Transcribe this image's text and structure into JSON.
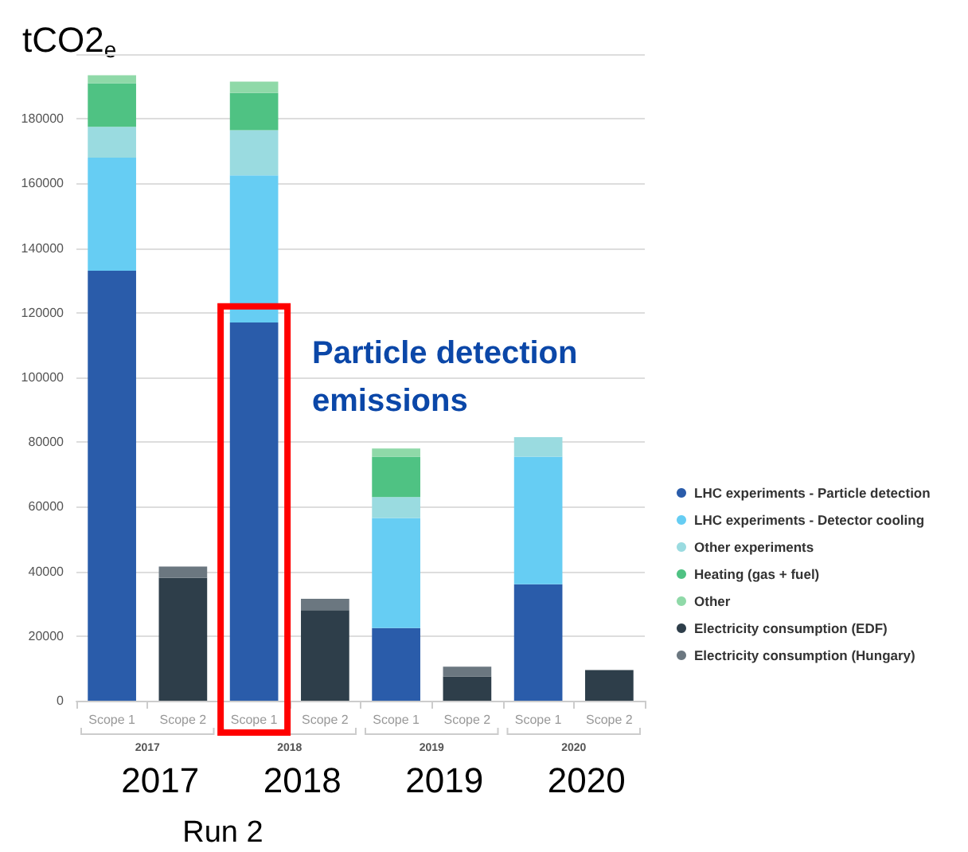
{
  "chart_data": {
    "type": "bar",
    "stacked": true,
    "ylabel": "tCO2$_{e}$",
    "categories": [
      "Scope 1",
      "Scope 2",
      "Scope 1",
      "Scope 2",
      "Scope 1",
      "Scope 2",
      "Scope 1",
      "Scope 2"
    ],
    "series": [
      {
        "name": "LHC experiments - Particle detection",
        "color": "#2a5caa",
        "values": [
          133000,
          null,
          117000,
          null,
          22500,
          null,
          36000,
          null
        ]
      },
      {
        "name": "LHC experiments - Detector cooling",
        "color": "#66cdf3",
        "values": [
          35000,
          null,
          45500,
          null,
          34000,
          null,
          39500,
          null
        ]
      },
      {
        "name": "Other experiments",
        "color": "#9adbe0",
        "values": [
          9500,
          null,
          14000,
          null,
          6500,
          null,
          6000,
          null
        ]
      },
      {
        "name": "Heating (gas + fuel)",
        "color": "#4fc283",
        "values": [
          13500,
          null,
          11500,
          null,
          12500,
          null,
          null,
          null
        ]
      },
      {
        "name": "Other",
        "color": "#8fd9a8",
        "values": [
          2500,
          null,
          3500,
          null,
          2500,
          null,
          null,
          null
        ]
      },
      {
        "name": "Electricity consumption (EDF)",
        "color": "#2e3e4a",
        "values": [
          null,
          38000,
          null,
          28000,
          null,
          7500,
          null,
          9500
        ]
      },
      {
        "name": "Electricity consumption (Hungary)",
        "color": "#6b7780",
        "values": [
          null,
          3500,
          null,
          3500,
          null,
          3000,
          null,
          null
        ]
      }
    ],
    "ylim": [
      0,
      200000
    ],
    "yticks": [
      0,
      20000,
      40000,
      60000,
      80000,
      100000,
      120000,
      140000,
      160000,
      180000,
      {
        "value": 200000,
        "label": null
      }
    ],
    "grid": "y",
    "legend": "right",
    "annotations": [
      "2017",
      "2018",
      "2019",
      "2020",
      "2017",
      "2018",
      "2019",
      "2020",
      "Run 2",
      "Particle detection emissions"
    ]
  }
}
